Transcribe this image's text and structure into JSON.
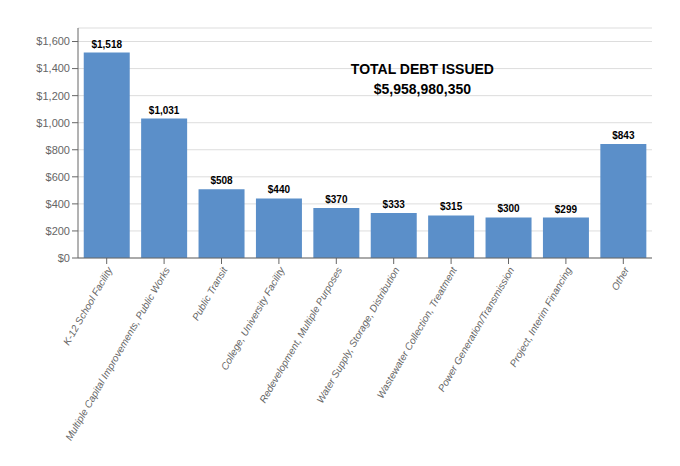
{
  "chart_data": {
    "type": "bar",
    "categories": [
      "K-12 School Facility",
      "Multiple Capital Improvements, Public Works",
      "Public Transit",
      "College, University Facility",
      "Redevelopment, Multiple Purposes",
      "Water Supply, Storage, Distribution",
      "Wastewater Collection, Treatment",
      "Power Generation/Transmission",
      "Project, Interim Financing",
      "Other"
    ],
    "values": [
      1518,
      1031,
      508,
      440,
      370,
      333,
      315,
      300,
      299,
      843
    ],
    "value_labels": [
      "$1,518",
      "$1,031",
      "$508",
      "$440",
      "$370",
      "$333",
      "$315",
      "$300",
      "$299",
      "$843"
    ],
    "data_labels": true,
    "color": "#5B8FC9",
    "ylim": [
      0,
      1700
    ],
    "yticks": [
      {
        "value": 0,
        "label": "$0"
      },
      {
        "value": 200,
        "label": "$200"
      },
      {
        "value": 400,
        "label": "$400"
      },
      {
        "value": 600,
        "label": "$600"
      },
      {
        "value": 800,
        "label": "$800"
      },
      {
        "value": 1000,
        "label": "$1,000"
      },
      {
        "value": 1200,
        "label": "$1,200"
      },
      {
        "value": 1400,
        "label": "$1,400"
      },
      {
        "value": 1600,
        "label": "$1,600"
      }
    ],
    "grid": true,
    "annotations": [
      "TOTAL DEBT ISSUED",
      "$5,958,980,350"
    ]
  }
}
